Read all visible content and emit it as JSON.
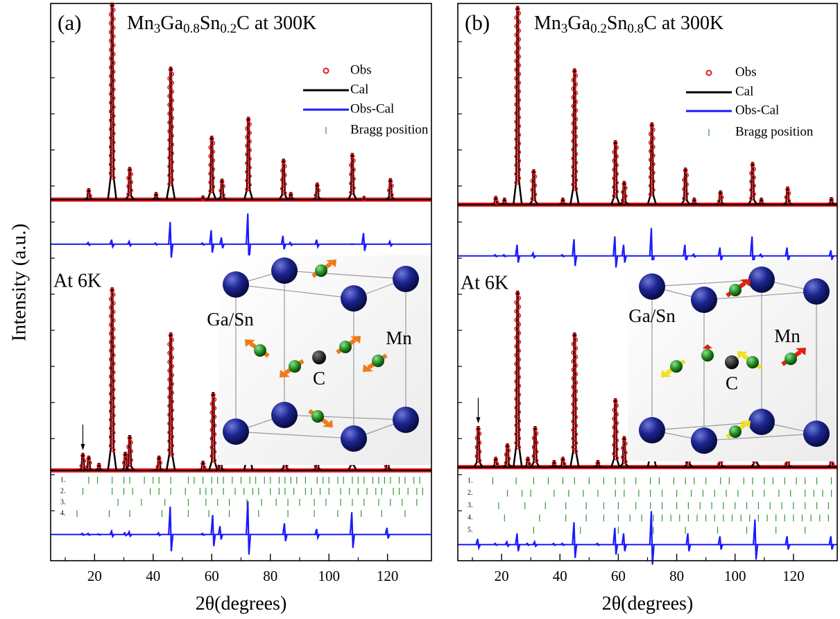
{
  "chart_data": [
    {
      "type": "line",
      "panel_label": "(a)",
      "title": [
        "Mn",
        "3",
        "Ga",
        "0.8",
        "Sn",
        "0.2",
        "C at 300K"
      ],
      "ylabel": "Intensity (a.u.)",
      "xlabel": "2θ(degrees)",
      "xlim": [
        5,
        135
      ],
      "xticks": [
        20,
        40,
        60,
        80,
        100,
        120
      ],
      "ylim": [
        0,
        100
      ],
      "series": [
        {
          "name": "Obs",
          "color": "#e8161b"
        },
        {
          "name": "Cal",
          "color": "#000000"
        },
        {
          "name": "Obs-Cal",
          "color": "#1a1aff"
        },
        {
          "name": "Bragg position",
          "color": "#2e9a2e"
        }
      ],
      "patterns": [
        {
          "baseline": 64.8,
          "x": [
            18,
            26,
            32,
            41,
            46,
            57,
            60,
            63.5,
            72.5,
            84.5,
            87,
            96,
            108,
            112,
            121
          ],
          "values": [
            66.7,
            100,
            70.5,
            66,
            88.5,
            65.4,
            76.1,
            68.4,
            79.5,
            72,
            66,
            67.7,
            73,
            65.3,
            68.5
          ],
          "diff_baseline": 56.8,
          "diff": [
            0.3,
            0.8,
            0.5,
            0.2,
            4,
            0.2,
            2.5,
            1.2,
            5.5,
            1.5,
            0.3,
            0.8,
            0,
            2,
            0.5
          ]
        },
        {
          "label": "At 6K",
          "baseline": 16.2,
          "x": [
            16,
            18,
            21.5,
            26,
            30.5,
            32,
            42,
            46,
            57,
            60.5,
            63,
            72.5,
            85,
            96,
            108,
            120
          ],
          "values": [
            19.2,
            18.7,
            17.4,
            48.9,
            19.4,
            22.4,
            18.7,
            40.8,
            17.8,
            30.1,
            19,
            38,
            21,
            19,
            24,
            19
          ],
          "diff_baseline": 4.7,
          "diff": [
            0.2,
            0.2,
            0.1,
            0.6,
            0.3,
            0.5,
            0.3,
            5,
            0.2,
            3.5,
            1.5,
            6,
            2,
            1,
            4,
            1.2
          ]
        }
      ],
      "bragg": [
        {
          "label": "1.",
          "x": [
            18,
            21,
            26,
            30,
            32,
            37,
            40,
            42,
            46,
            52,
            54,
            57,
            60,
            62,
            64,
            67,
            70,
            73,
            75,
            78,
            80,
            83,
            85,
            87,
            89,
            92,
            96,
            98,
            100,
            103,
            105,
            108,
            110,
            112,
            115,
            117,
            119,
            121,
            124,
            126,
            129,
            131
          ]
        },
        {
          "label": "2.",
          "x": [
            16,
            26,
            30,
            33,
            39,
            42,
            46,
            51,
            56,
            58,
            60,
            64,
            68,
            71,
            74,
            76,
            80,
            83,
            85,
            88,
            92,
            94,
            97,
            100,
            104,
            107,
            110,
            113,
            116,
            118,
            122,
            124,
            127,
            130,
            132
          ]
        },
        {
          "label": "3.",
          "x": [
            28,
            36,
            44,
            52,
            58,
            62,
            66,
            72,
            77,
            82,
            86,
            90,
            95,
            99,
            104,
            108,
            112,
            117,
            121,
            125,
            130
          ]
        },
        {
          "label": "4.",
          "x": [
            14,
            25,
            32,
            43,
            52,
            59,
            66,
            76,
            86,
            95,
            103,
            111,
            118,
            126
          ]
        }
      ],
      "inset_labels": [
        "Ga/Sn",
        "Mn",
        "C"
      ]
    },
    {
      "type": "line",
      "panel_label": "(b)",
      "title": [
        "Mn",
        "3",
        "Ga",
        "0.2",
        "Sn",
        "0.8",
        "C at 300K"
      ],
      "xlabel": "2θ(degrees)",
      "xlim": [
        5,
        135
      ],
      "xticks": [
        20,
        40,
        60,
        80,
        100,
        120
      ],
      "ylim": [
        0,
        100
      ],
      "series": [
        {
          "name": "Obs",
          "color": "#e8161b"
        },
        {
          "name": "Cal",
          "color": "#000000"
        },
        {
          "name": "Obs-Cal",
          "color": "#1a1aff"
        },
        {
          "name": "Bragg position",
          "color": "#2e9a2e"
        }
      ],
      "patterns": [
        {
          "baseline": 63.9,
          "x": [
            18,
            21,
            25.5,
            31,
            41,
            45,
            59,
            62,
            71.5,
            83,
            86,
            95,
            106,
            109,
            118,
            133
          ],
          "values": [
            65.3,
            65,
            99.4,
            70.1,
            65,
            88.2,
            75.3,
            68,
            78.5,
            70.4,
            65,
            66.3,
            71.4,
            65,
            67,
            65.1
          ],
          "diff_baseline": 54.7,
          "diff": [
            0.2,
            0.2,
            2,
            0.5,
            0.2,
            3,
            3.5,
            2,
            5,
            2,
            0.3,
            1.5,
            3.5,
            0.3,
            1.5,
            1
          ]
        },
        {
          "label": "At 6K",
          "baseline": 16.8,
          "x": [
            12,
            18,
            22,
            25.5,
            29,
            31.5,
            38,
            41,
            45,
            53,
            59,
            62,
            71.5,
            84,
            95,
            107,
            118,
            133
          ],
          "values": [
            24,
            18.5,
            20.9,
            48.3,
            18.5,
            24,
            17.9,
            18.5,
            40.8,
            17.9,
            29,
            22.2,
            36,
            21,
            19,
            23,
            19,
            18.5
          ],
          "diff_baseline": 2.9,
          "diff": [
            1,
            0.2,
            0.5,
            2,
            0.2,
            0.5,
            0.2,
            0.2,
            4,
            0.2,
            3,
            2,
            6,
            2,
            1.5,
            4.5,
            1.5,
            1.5
          ]
        }
      ],
      "bragg": [
        {
          "label": "1.",
          "x": [
            17,
            25,
            31,
            36,
            41,
            45,
            50,
            55,
            59,
            62,
            66,
            71,
            74,
            79,
            83,
            86,
            90,
            95,
            98,
            103,
            106,
            110,
            113,
            117,
            121,
            124,
            128,
            133
          ]
        },
        {
          "label": "2.",
          "x": [
            12,
            22,
            27,
            30,
            38,
            43,
            48,
            53,
            59,
            62,
            67,
            71,
            75,
            80,
            85,
            89,
            93,
            97,
            101,
            106,
            110,
            115,
            119,
            124,
            127,
            130,
            133
          ]
        },
        {
          "label": "3.",
          "x": [
            19,
            28,
            35,
            42,
            49,
            55,
            60,
            66,
            71,
            75,
            80,
            84,
            88,
            92,
            96,
            100,
            104,
            108,
            112,
            116,
            120,
            124,
            128,
            132
          ]
        },
        {
          "label": "4.",
          "x": [
            8,
            21,
            33,
            42,
            49,
            55,
            60,
            64,
            68,
            72,
            75,
            78,
            81,
            84,
            87,
            90,
            93,
            96,
            99,
            102,
            105,
            108,
            111,
            114,
            117,
            120,
            123,
            126,
            129,
            132
          ]
        },
        {
          "label": "5.",
          "x": [
            12,
            31,
            47,
            60,
            72,
            83,
            94,
            104,
            114,
            124
          ]
        }
      ],
      "inset_labels": [
        "Ga/Sn",
        "Mn",
        "C"
      ]
    }
  ]
}
